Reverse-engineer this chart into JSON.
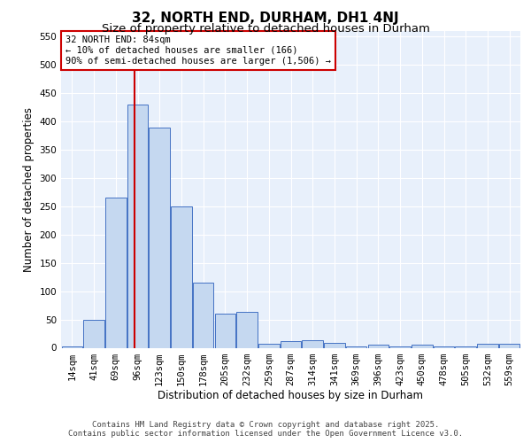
{
  "title": "32, NORTH END, DURHAM, DH1 4NJ",
  "subtitle": "Size of property relative to detached houses in Durham",
  "xlabel": "Distribution of detached houses by size in Durham",
  "ylabel": "Number of detached properties",
  "categories": [
    "14sqm",
    "41sqm",
    "69sqm",
    "96sqm",
    "123sqm",
    "150sqm",
    "178sqm",
    "205sqm",
    "232sqm",
    "259sqm",
    "287sqm",
    "314sqm",
    "341sqm",
    "369sqm",
    "396sqm",
    "423sqm",
    "450sqm",
    "478sqm",
    "505sqm",
    "532sqm",
    "559sqm"
  ],
  "values": [
    3,
    50,
    265,
    430,
    390,
    250,
    115,
    60,
    63,
    7,
    12,
    13,
    8,
    2,
    6,
    2,
    5,
    2,
    2,
    7,
    7
  ],
  "bar_color": "#c5d8f0",
  "bar_edge_color": "#4472c4",
  "background_color": "#e8f0fb",
  "grid_color": "#ffffff",
  "annotation_text": "32 NORTH END: 84sqm\n← 10% of detached houses are smaller (166)\n90% of semi-detached houses are larger (1,506) →",
  "annotation_box_color": "#ffffff",
  "annotation_box_edge": "#cc0000",
  "vline_x_index": 2.85,
  "vline_color": "#cc0000",
  "ylim": [
    0,
    560
  ],
  "yticks": [
    0,
    50,
    100,
    150,
    200,
    250,
    300,
    350,
    400,
    450,
    500,
    550
  ],
  "footer_line1": "Contains HM Land Registry data © Crown copyright and database right 2025.",
  "footer_line2": "Contains public sector information licensed under the Open Government Licence v3.0.",
  "title_fontsize": 11,
  "subtitle_fontsize": 9.5,
  "axis_label_fontsize": 8.5,
  "tick_fontsize": 7.5,
  "annotation_fontsize": 7.5,
  "footer_fontsize": 6.5
}
